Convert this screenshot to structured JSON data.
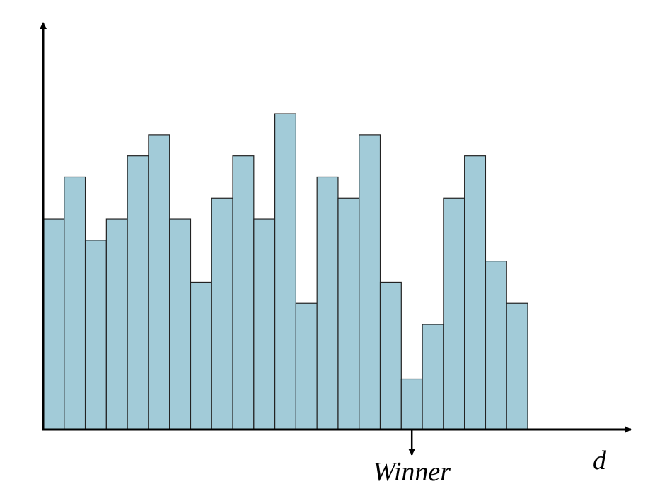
{
  "chart_data": {
    "type": "bar",
    "x_label": "d",
    "annotation": "Winner",
    "categories": [
      null,
      null,
      null,
      null,
      null,
      null,
      null,
      null,
      null,
      null,
      null,
      null,
      null,
      null,
      null,
      null,
      null,
      null,
      null,
      null,
      null,
      null,
      null
    ],
    "values": [
      10,
      12,
      9,
      10,
      13,
      14,
      10,
      7,
      11,
      13,
      10,
      15,
      6,
      12,
      11,
      14,
      7,
      2.4,
      5,
      11,
      13,
      8,
      6
    ],
    "color": "#a2cbd8",
    "ylim": [
      0,
      19.4
    ]
  }
}
